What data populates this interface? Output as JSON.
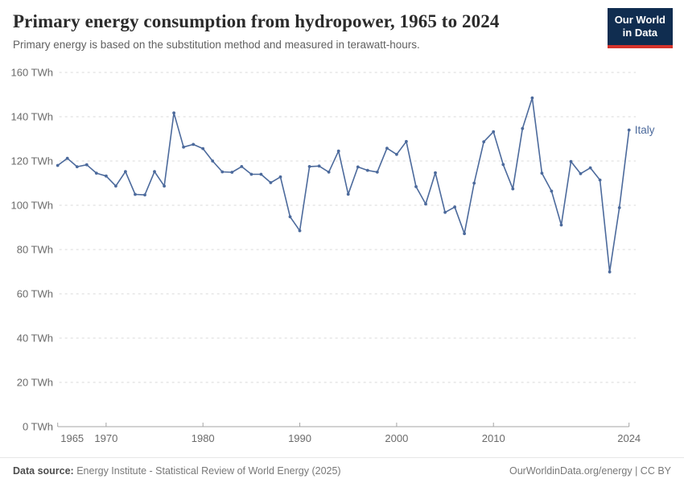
{
  "header": {
    "title": "Primary energy consumption from hydropower, 1965 to 2024",
    "subtitle": "Primary energy is based on the substitution method and measured in terawatt-hours.",
    "logo": {
      "line1": "Our World",
      "line2": "in Data"
    }
  },
  "footer": {
    "source_label": "Data source:",
    "source_value": " Energy Institute - Statistical Review of World Energy (2025)",
    "credit": "OurWorldinData.org/energy | CC BY"
  },
  "colors": {
    "line": "#4C6A9C",
    "grid": "#dadada",
    "axis": "#a5a5a5",
    "tick_label": "#6b6b6b",
    "logo_bg": "#102D50",
    "logo_red": "#D5332B"
  },
  "chart_data": {
    "type": "line",
    "title": "Primary energy consumption from hydropower, 1965 to 2024",
    "ylabel": "",
    "xlabel": "",
    "ylim": [
      0,
      160
    ],
    "xlim": [
      1965,
      2024
    ],
    "y_ticks": [
      0,
      20,
      40,
      60,
      80,
      100,
      120,
      140,
      160
    ],
    "y_tick_suffix": " TWh",
    "x_ticks": [
      1965,
      1970,
      1980,
      1990,
      2000,
      2010,
      2024
    ],
    "grid": true,
    "markers": true,
    "legend": "end-of-line-label",
    "series": [
      {
        "name": "Italy",
        "color": "#4C6A9C",
        "x": [
          1965,
          1966,
          1967,
          1968,
          1969,
          1970,
          1971,
          1972,
          1973,
          1974,
          1975,
          1976,
          1977,
          1978,
          1979,
          1980,
          1981,
          1982,
          1983,
          1984,
          1985,
          1986,
          1987,
          1988,
          1989,
          1990,
          1991,
          1992,
          1993,
          1994,
          1995,
          1996,
          1997,
          1998,
          1999,
          2000,
          2001,
          2002,
          2003,
          2004,
          2005,
          2006,
          2007,
          2008,
          2009,
          2010,
          2011,
          2012,
          2013,
          2014,
          2015,
          2016,
          2017,
          2018,
          2019,
          2020,
          2021,
          2022,
          2023,
          2024
        ],
        "values": [
          118.0,
          121.2,
          117.4,
          118.3,
          114.5,
          113.2,
          108.7,
          115.2,
          104.9,
          104.7,
          115.2,
          108.7,
          141.7,
          126.3,
          127.5,
          125.6,
          120.0,
          115.1,
          114.9,
          117.5,
          114.0,
          114.0,
          110.2,
          112.8,
          94.8,
          88.5,
          117.5,
          117.7,
          115.0,
          124.5,
          105.0,
          117.3,
          115.8,
          115.0,
          125.8,
          123.0,
          128.8,
          108.4,
          100.6,
          114.7,
          96.8,
          99.2,
          87.2,
          110.0,
          128.7,
          133.2,
          118.4,
          107.4,
          134.7,
          148.5,
          114.5,
          106.4,
          91.1,
          119.8,
          114.3,
          116.9,
          111.4,
          69.9,
          98.9,
          134.0
        ]
      }
    ]
  }
}
